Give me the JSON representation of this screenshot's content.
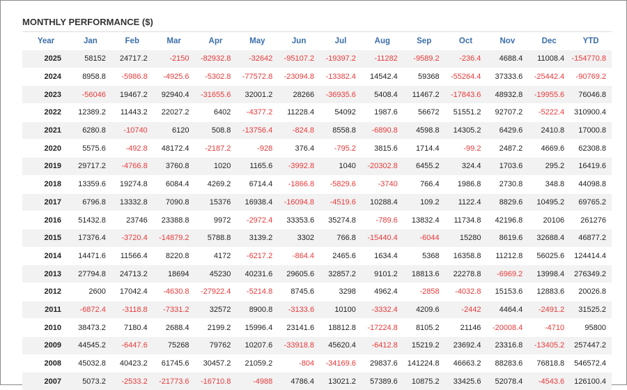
{
  "header": {
    "title": "MONTHLY PERFORMANCE ($)"
  },
  "table": {
    "columns": [
      "Year",
      "Jan",
      "Feb",
      "Mar",
      "Apr",
      "May",
      "Jun",
      "Jul",
      "Aug",
      "Sep",
      "Oct",
      "Nov",
      "Dec",
      "YTD"
    ],
    "rows": [
      [
        2025,
        58152,
        24717.2,
        -2150,
        -82932.8,
        -32642,
        -95107.2,
        -19397.2,
        -11282,
        -9589.2,
        -236.4,
        4688.4,
        11008.4,
        -154770.8
      ],
      [
        2024,
        8958.8,
        -5986.8,
        -4925.6,
        -5302.8,
        -77572.8,
        -23094.8,
        -13382.4,
        14542.4,
        59368,
        -55264.4,
        37333.6,
        -25442.4,
        -90769.2
      ],
      [
        2023,
        -56046,
        19467.2,
        92940.4,
        -31655.6,
        32001.2,
        28266,
        -36935.6,
        5408.4,
        11467.2,
        -17843.6,
        48932.8,
        -19955.6,
        76046.8
      ],
      [
        2022,
        12389.2,
        11443.2,
        22027.2,
        6402,
        -4377.2,
        11228.4,
        54092,
        1987.6,
        56672,
        51551.2,
        92707.2,
        -5222.4,
        310900.4
      ],
      [
        2021,
        6280.8,
        -10740,
        6120,
        508.8,
        -13756.4,
        -824.8,
        8558.8,
        -6890.8,
        4598.8,
        14305.2,
        6429.6,
        2410.8,
        17000.8
      ],
      [
        2020,
        5575.6,
        -492.8,
        48172.4,
        -2187.2,
        -928,
        376.4,
        -795.2,
        3815.6,
        1714.4,
        -99.2,
        2487.2,
        4669.6,
        62308.8
      ],
      [
        2019,
        29717.2,
        -4766.8,
        3760.8,
        1020,
        1165.6,
        -3992.8,
        1040,
        -20302.8,
        6455.2,
        324.4,
        1703.6,
        295.2,
        16419.6
      ],
      [
        2018,
        13359.6,
        19274.8,
        6084.4,
        4269.2,
        6714.4,
        -1866.8,
        -5829.6,
        -3740,
        766.4,
        1986.8,
        2730.8,
        348.8,
        44098.8
      ],
      [
        2017,
        6796.8,
        13332.8,
        7090.8,
        15376,
        16938.4,
        -16094.8,
        -4519.6,
        10288.4,
        109.2,
        1122.4,
        8829.6,
        10495.2,
        69765.2
      ],
      [
        2016,
        51432.8,
        23746,
        23388.8,
        9972,
        -2972.4,
        33353.6,
        35274.8,
        -789.6,
        13832.4,
        11734.8,
        42196.8,
        20106,
        261276
      ],
      [
        2015,
        17376.4,
        -3720.4,
        -14879.2,
        5788.8,
        3139.2,
        3302,
        766.8,
        -15440.4,
        -6044,
        15280,
        8619.6,
        32688.4,
        46877.2
      ],
      [
        2014,
        14471.6,
        11566.4,
        8220.8,
        4172,
        -6217.2,
        -864.4,
        2465.6,
        1634.4,
        5368,
        16358.8,
        11212.8,
        56025.6,
        124414.4
      ],
      [
        2013,
        27794.8,
        24713.2,
        18694,
        45230,
        40231.6,
        29605.6,
        32857.2,
        9101.2,
        18813.6,
        22278.8,
        -6969.2,
        13998.4,
        276349.2
      ],
      [
        2012,
        2600,
        17042.4,
        -4630.8,
        -27922.4,
        -5214.8,
        8745.6,
        3298,
        4962.4,
        -2858,
        -4032.8,
        15153.6,
        12883.6,
        20026.8
      ],
      [
        2011,
        -6872.4,
        -3118.8,
        -7331.2,
        32572,
        8900.8,
        -3133.6,
        10100,
        -3332.4,
        4209.6,
        -2442,
        4464.4,
        -2491.2,
        31525.2
      ],
      [
        2010,
        38473.2,
        7180.4,
        2688.4,
        2199.2,
        15996.4,
        23141.6,
        18812.8,
        -17224.8,
        8105.2,
        21146,
        -20008.4,
        -4710,
        95800
      ],
      [
        2009,
        44545.2,
        -6447.6,
        75268,
        79762,
        10207.6,
        -33918.8,
        45620.4,
        -6412.8,
        15219.2,
        23692.4,
        23316.8,
        -13405.2,
        257447.2
      ],
      [
        2008,
        45032.8,
        40423.2,
        61745.6,
        30457.2,
        21059.2,
        -804,
        -34169.6,
        29837.6,
        141224.8,
        46663.2,
        88283.6,
        76818.8,
        546572.4
      ],
      [
        2007,
        5073.2,
        -2533.2,
        -21773.6,
        -16710.8,
        -4988,
        4786.4,
        13021.2,
        57389.6,
        10875.2,
        33425.6,
        52078.4,
        -4543.6,
        126100.4
      ]
    ]
  }
}
